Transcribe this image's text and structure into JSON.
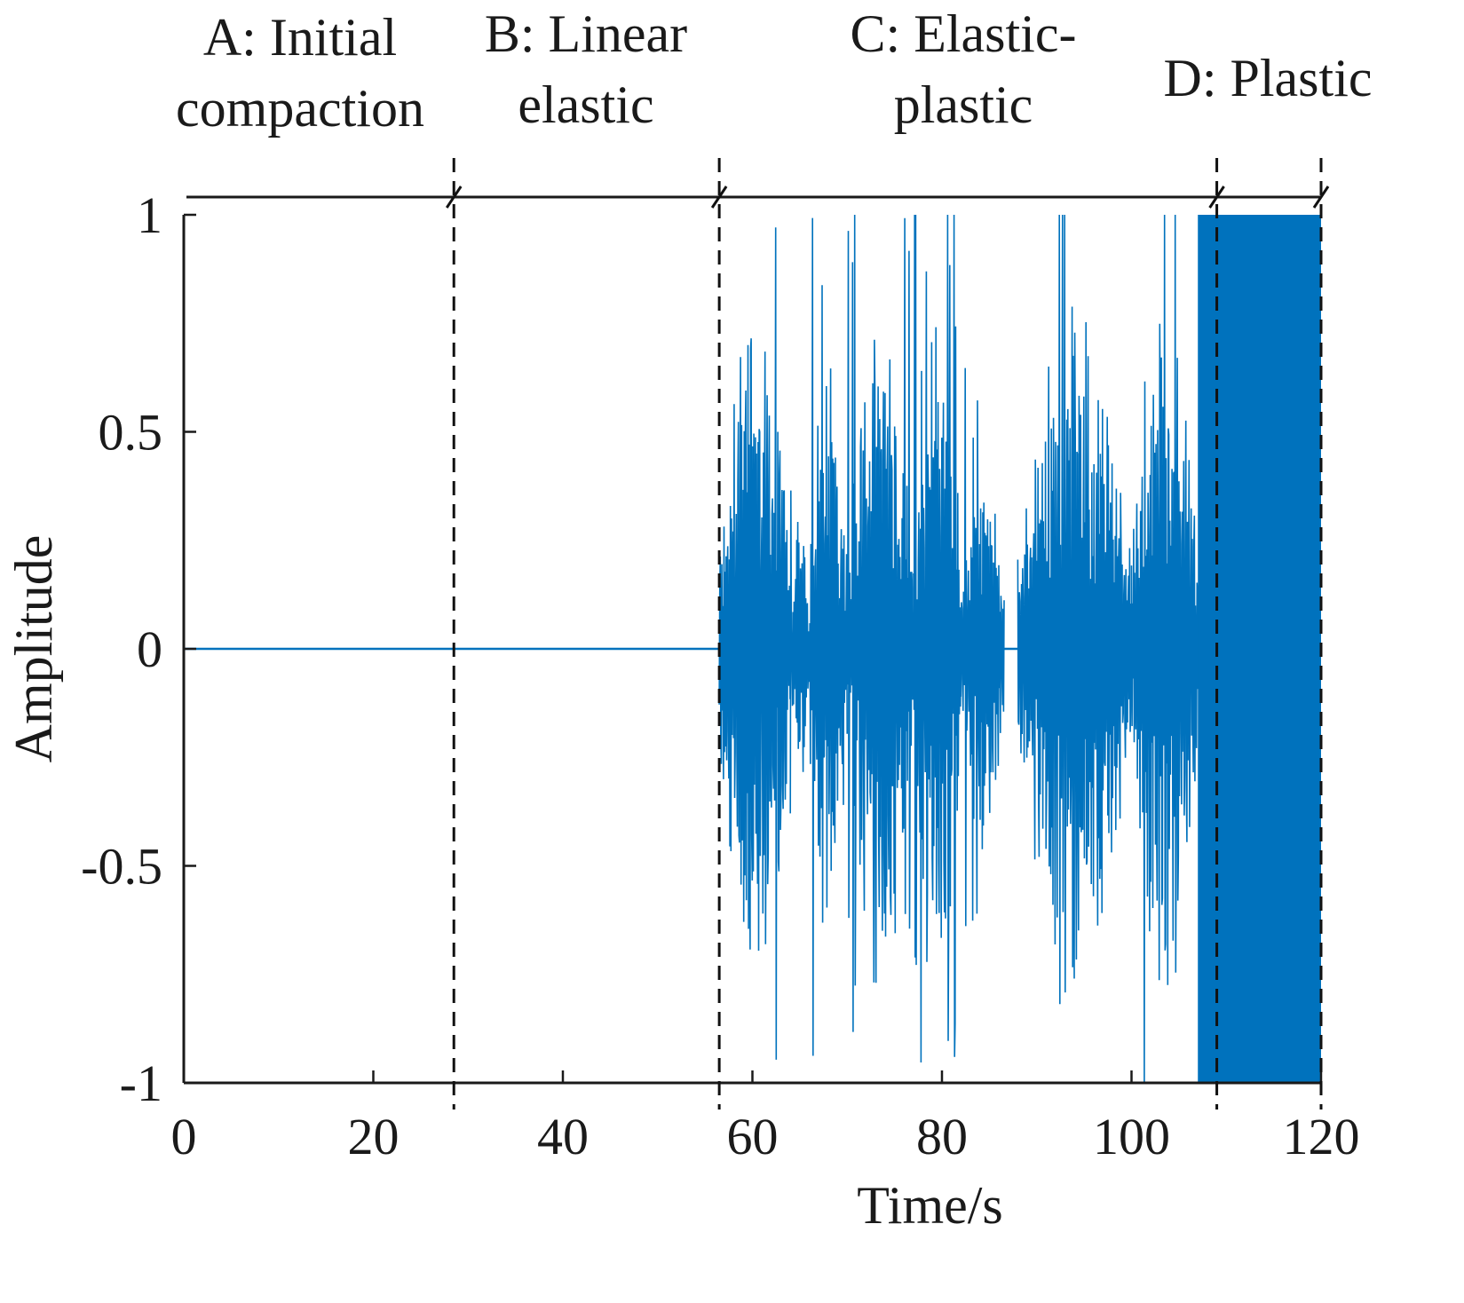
{
  "chart_data": {
    "type": "line",
    "title": "",
    "xlabel": "Time/s",
    "ylabel": "Amplitude",
    "xlim": [
      0,
      120
    ],
    "ylim": [
      -1,
      1
    ],
    "xticks": [
      0,
      20,
      40,
      60,
      80,
      100,
      120
    ],
    "xtick_labels": [
      "0",
      "20",
      "40",
      "60",
      "80",
      "100",
      "120"
    ],
    "yticks": [
      -1,
      -0.5,
      0,
      0.5,
      1
    ],
    "ytick_labels": [
      "-1",
      "-0.5",
      "0",
      "0.5",
      "1"
    ],
    "grid": false,
    "series": [
      {
        "name": "Amplitude",
        "color": "#0072BD",
        "segments": [
          {
            "x_start": 0,
            "x_end": 56.5,
            "behavior": "flat",
            "amplitude": 0
          },
          {
            "x_start": 56.5,
            "x_end": 64,
            "behavior": "burst",
            "amplitude": 1.0
          },
          {
            "x_start": 64,
            "x_end": 66,
            "behavior": "burst",
            "amplitude": 0.4
          },
          {
            "x_start": 66,
            "x_end": 70,
            "behavior": "burst",
            "amplitude": 0.9
          },
          {
            "x_start": 70,
            "x_end": 77,
            "behavior": "burst",
            "amplitude": 1.0
          },
          {
            "x_start": 77,
            "x_end": 82,
            "behavior": "burst",
            "amplitude": 1.0
          },
          {
            "x_start": 82,
            "x_end": 86.5,
            "behavior": "burst",
            "amplitude": 0.6
          },
          {
            "x_start": 86.5,
            "x_end": 88,
            "behavior": "flat",
            "amplitude": 0
          },
          {
            "x_start": 88,
            "x_end": 100,
            "behavior": "burst",
            "amplitude": 1.0
          },
          {
            "x_start": 100,
            "x_end": 107,
            "behavior": "burst",
            "amplitude": 1.0
          },
          {
            "x_start": 107,
            "x_end": 120,
            "behavior": "saturated",
            "amplitude": 1.0
          }
        ]
      }
    ],
    "stage_boundaries": [
      28.5,
      56.5,
      109,
      120
    ],
    "stages": [
      {
        "id": "A",
        "lines": [
          "A: Initial",
          "compaction"
        ],
        "x_start": 0,
        "x_end": 28.5
      },
      {
        "id": "B",
        "lines": [
          "B: Linear",
          "elastic"
        ],
        "x_start": 28.5,
        "x_end": 56.5
      },
      {
        "id": "C",
        "lines": [
          "C: Elastic-",
          "plastic"
        ],
        "x_start": 56.5,
        "x_end": 109
      },
      {
        "id": "D",
        "lines": [
          "D: Plastic"
        ],
        "x_start": 109,
        "x_end": 120
      }
    ]
  },
  "colors": {
    "signal": "#0072BD",
    "axis": "#1a1a1a",
    "boundary": "#111111"
  }
}
